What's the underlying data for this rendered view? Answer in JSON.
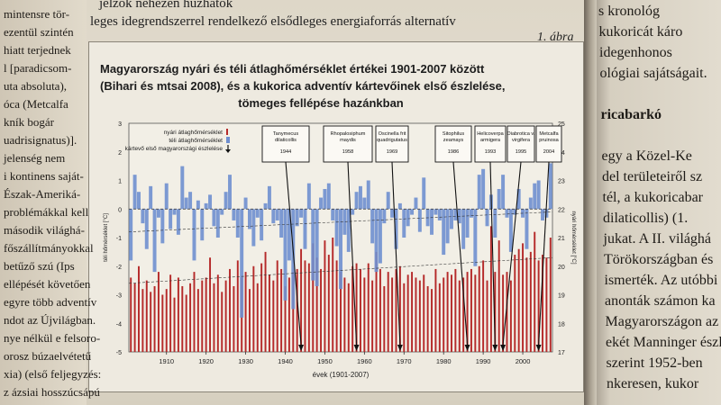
{
  "left_page": {
    "lines": [
      "mintensre tör-",
      "ezentül szintén",
      "hiatt terjednek",
      "l [paradicsom-",
      "uta absoluta),",
      "óca (Metcalfa",
      "kník bogár",
      "uadrisignatus)].",
      "jelenség nem",
      "i kontinens saját-",
      "Észak-Ameriká-",
      "problémákkal kell",
      "második világhá-",
      "főszállítmányokkal",
      "betűző szú (Ips",
      "ellépését követően",
      "egyre több adventív",
      "ndot az Újvilágban.",
      "nye nélkül e felsoro-",
      "orosz búzaelvétetű",
      "xia) (első feljegyzés:",
      "z ázsiai hosszúcsápú"
    ]
  },
  "main_page": {
    "header_lines": [
      "jelzők nehezen huzhatók",
      "leges idegrendszerrel rendelkező elsődleges energiaforrás alternatív"
    ],
    "figure_label": "1. ábra",
    "title_lines": [
      "Magyarország nyári és téli átlaghőmérséklet értékei 1901-2007 között",
      "(Bihari és mtsai 2008), és a kukorica adventív kártevőinek első észlelése,",
      "tömeges fellépése hazánkban"
    ]
  },
  "right_page": {
    "lines": [
      "s kronológ",
      "kukoricát káro",
      "idegenhonos",
      "ológiai sajátságait.",
      "",
      "ricabarkó",
      "",
      "egy a Közel-Ke",
      "del területeiről sz",
      "tél, a kukoricabar",
      "dilaticollis) (1.",
      "jukat. A II. világhá",
      "Törökországban és",
      "ismerték. Az utóbbi",
      "anonták számon ka",
      "Magyarországon az",
      "ekét Manninger észl",
      "szerint 1952-ben",
      "nkeresen, kukor"
    ]
  },
  "chart_data": {
    "type": "bar",
    "title": "Magyarország nyári és téli átlaghőmérséklet értékei 1901-2007 között (Bihari és mtsai 2008), és a kukorica adventív kártevőinek első észlelése, tömeges fellépése hazánkban",
    "xlabel": "évek (1901-2007)",
    "ylabel_left": "téli hőmérséklet [°C]",
    "ylabel_right": "nyári hőmérséklet [°C]",
    "x_range": [
      1901,
      2007
    ],
    "x_ticks": [
      "1910",
      "1920",
      "1930",
      "1940",
      "1950",
      "1960",
      "1970",
      "1980",
      "1990",
      "2000"
    ],
    "y_left_ticks": [
      "3",
      "2",
      "1",
      "0",
      "-1",
      "-2",
      "-3",
      "-4",
      "-5"
    ],
    "y_right_ticks": [
      "25",
      "24",
      "23",
      "22",
      "21",
      "20",
      "19",
      "18",
      "17"
    ],
    "ylim_left": [
      -5,
      3
    ],
    "ylim_right": [
      17,
      25
    ],
    "legend": [
      "nyári átlaghőmérséklet",
      "téli átlaghőmérséklet",
      "kártevő első magyarországi észlelése"
    ],
    "colors": {
      "summer": "#b52a2a",
      "winter": "#6f8fcf",
      "arrow": "#1a1a1a"
    },
    "series": [
      {
        "name": "nyári átlaghőmérséklet",
        "axis": "right",
        "values": [
          19.6,
          19.4,
          20.0,
          19.2,
          19.5,
          19.1,
          19.3,
          19.8,
          19.0,
          19.2,
          19.7,
          18.9,
          19.6,
          19.3,
          19.0,
          19.4,
          19.8,
          19.2,
          19.5,
          19.6,
          20.3,
          19.4,
          19.7,
          19.1,
          19.5,
          19.9,
          19.3,
          20.2,
          19.6,
          19.8,
          19.2,
          20.0,
          19.4,
          20.1,
          20.5,
          19.7,
          19.5,
          20.2,
          19.9,
          19.3,
          19.6,
          19.8,
          19.9,
          20.6,
          20.2,
          20.1,
          20.8,
          20.3,
          19.9,
          20.9,
          20.4,
          21.0,
          20.2,
          19.8,
          19.6,
          19.4,
          20.0,
          20.1,
          19.9,
          19.6,
          20.1,
          19.5,
          20.5,
          19.9,
          19.3,
          19.8,
          19.6,
          19.9,
          20.0,
          19.4,
          19.7,
          19.8,
          19.6,
          19.5,
          19.7,
          19.3,
          19.2,
          19.9,
          19.4,
          19.6,
          19.8,
          19.7,
          19.9,
          19.5,
          19.6,
          19.8,
          19.9,
          19.7,
          20.0,
          20.2,
          19.5,
          21.4,
          19.8,
          20.9,
          19.7,
          19.8,
          19.5,
          20.4,
          20.6,
          20.8,
          20.3,
          20.5,
          21.2,
          20.2,
          20.4,
          20.3,
          21.0
        ]
      },
      {
        "name": "téli átlaghőmérséklet",
        "axis": "left",
        "values": [
          -1.8,
          1.2,
          0.6,
          -0.5,
          -1.4,
          0.8,
          -2.2,
          -0.3,
          -1.2,
          0.9,
          -0.7,
          -0.2,
          -0.9,
          1.5,
          0.4,
          0.6,
          -1.8,
          0.3,
          -1.1,
          0.2,
          0.5,
          -0.6,
          -1.0,
          -0.2,
          0.6,
          1.2,
          -0.4,
          -1.0,
          -3.8,
          0.4,
          -0.7,
          -1.3,
          -0.3,
          -1.1,
          0.2,
          0.8,
          -0.5,
          -0.4,
          -1.0,
          -3.2,
          -1.8,
          -3.5,
          -0.6,
          -0.3,
          -1.4,
          0.9,
          -2.5,
          -2.7,
          0.4,
          0.7,
          0.9,
          -0.4,
          -1.3,
          -2.8,
          -0.9,
          -1.5,
          -0.2,
          0.6,
          0.8,
          0.4,
          1.0,
          -1.2,
          -2.2,
          -1.9,
          -0.5,
          0.6,
          -0.3,
          -1.4,
          0.2,
          -1.0,
          -0.6,
          -0.2,
          0.4,
          -0.8,
          1.1,
          -0.6,
          -0.9,
          -0.2,
          -0.4,
          -1.6,
          -1.2,
          -0.7,
          -0.4,
          -0.5,
          -1.4,
          -1.0,
          -0.3,
          -2.0,
          1.2,
          1.4,
          -0.6,
          0.5,
          -1.0,
          0.7,
          1.2,
          -0.3,
          -1.5,
          -0.2,
          0.7,
          -0.3,
          -1.4,
          0.4,
          0.9,
          1.0,
          -0.4,
          -0.3,
          1.6
        ]
      }
    ],
    "annotations": [
      {
        "label": "Tanymecus dilaticollis",
        "year": "1944"
      },
      {
        "label": "Rhopalosiphum maydis",
        "year": "1958"
      },
      {
        "label": "Oscinella frit quadrigutatus",
        "year": "1969"
      },
      {
        "label": "Sitophilus zeamays",
        "year": "1986"
      },
      {
        "label": "Helicoverpa armigera",
        "year": "1993"
      },
      {
        "label": "Diabrotica v. virgifera",
        "year": "1995"
      },
      {
        "label": "Metcalfa pruinosa",
        "year": "2004"
      }
    ]
  }
}
